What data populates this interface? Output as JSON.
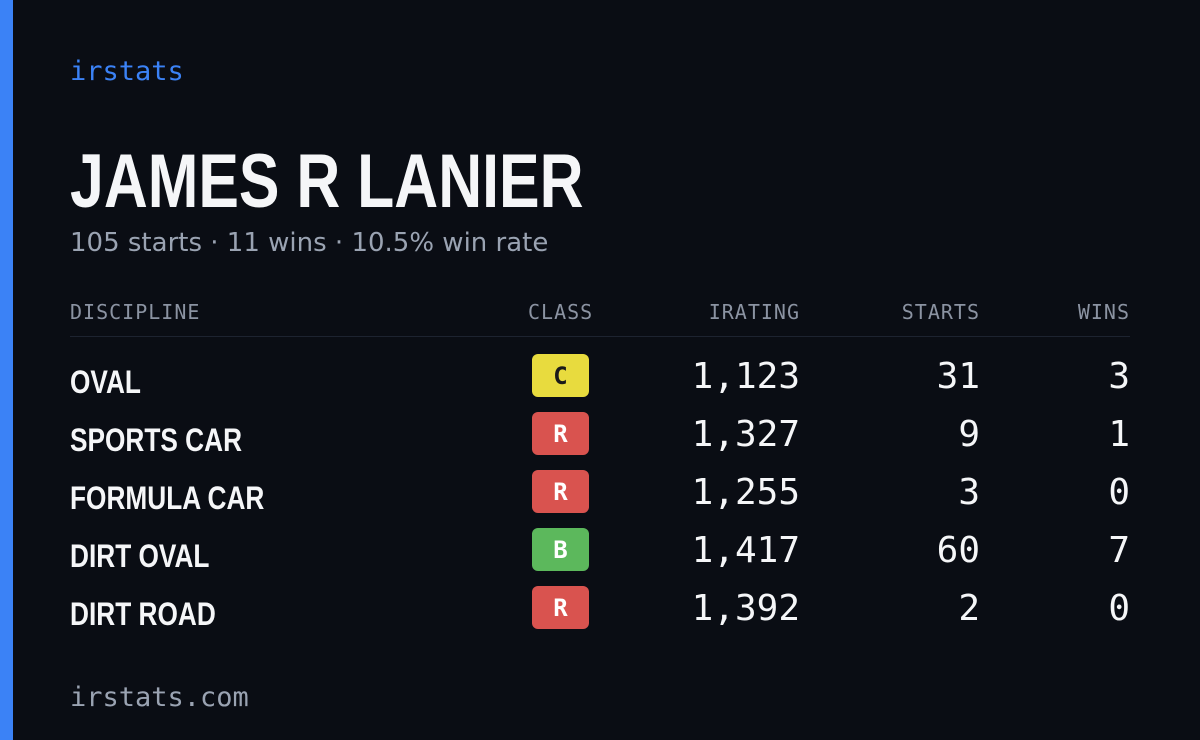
{
  "brand": "irstats",
  "driver": {
    "name": "JAMES R LANIER",
    "summary": "105 starts · 11 wins · 10.5% win rate"
  },
  "table": {
    "headers": {
      "discipline": "DISCIPLINE",
      "class": "CLASS",
      "irating": "IRATING",
      "starts": "STARTS",
      "wins": "WINS"
    },
    "rows": [
      {
        "discipline": "OVAL",
        "class": "C",
        "class_color": "#e8db3e",
        "class_text_color": "#1a1a1a",
        "irating": "1,123",
        "starts": "31",
        "wins": "3"
      },
      {
        "discipline": "SPORTS CAR",
        "class": "R",
        "class_color": "#d9534f",
        "class_text_color": "#ffffff",
        "irating": "1,327",
        "starts": "9",
        "wins": "1"
      },
      {
        "discipline": "FORMULA CAR",
        "class": "R",
        "class_color": "#d9534f",
        "class_text_color": "#ffffff",
        "irating": "1,255",
        "starts": "3",
        "wins": "0"
      },
      {
        "discipline": "DIRT OVAL",
        "class": "B",
        "class_color": "#5cb85c",
        "class_text_color": "#ffffff",
        "irating": "1,417",
        "starts": "60",
        "wins": "7"
      },
      {
        "discipline": "DIRT ROAD",
        "class": "R",
        "class_color": "#d9534f",
        "class_text_color": "#ffffff",
        "irating": "1,392",
        "starts": "2",
        "wins": "0"
      }
    ]
  },
  "footer": "irstats.com",
  "colors": {
    "accent": "#3b82f6",
    "background": "#0a0d14"
  }
}
